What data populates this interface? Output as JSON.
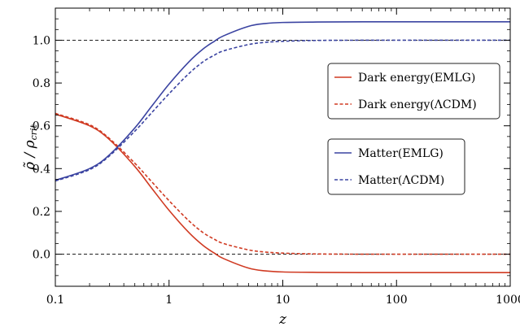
{
  "chart_data": {
    "type": "line",
    "title": "",
    "xlabel": "z",
    "ylabel_main": "ρ̃ / ρ",
    "ylabel_sub": "crit",
    "x_scale": "log",
    "xlim": [
      0.1,
      1000
    ],
    "ylim": [
      -0.15,
      1.15
    ],
    "x_ticks": [
      {
        "value": 0.1,
        "label": "0.1"
      },
      {
        "value": 1,
        "label": "1"
      },
      {
        "value": 10,
        "label": "10"
      },
      {
        "value": 100,
        "label": "100"
      },
      {
        "value": 1000,
        "label": "1000"
      }
    ],
    "y_ticks": [
      {
        "value": 0.0,
        "label": "0.0"
      },
      {
        "value": 0.2,
        "label": "0.2"
      },
      {
        "value": 0.4,
        "label": "0.4"
      },
      {
        "value": 0.6,
        "label": "0.6"
      },
      {
        "value": 0.8,
        "label": "0.8"
      },
      {
        "value": 1.0,
        "label": "1.0"
      }
    ],
    "reference_lines": [
      0.0,
      1.0
    ],
    "x": [
      0.1,
      0.2,
      0.3,
      0.5,
      0.7,
      1,
      1.5,
      2,
      2.5,
      3,
      5,
      7,
      10,
      20,
      50,
      100,
      1000
    ],
    "series": [
      {
        "name": "Dark energy(EMLG)",
        "color": "#d03a22",
        "dash": "solid",
        "legend_group": 0,
        "values": [
          0.655,
          0.6,
          0.535,
          0.41,
          0.31,
          0.205,
          0.1,
          0.04,
          0.005,
          -0.02,
          -0.065,
          -0.078,
          -0.083,
          -0.085,
          -0.086,
          -0.086,
          -0.086
        ]
      },
      {
        "name": "Dark energy(ΛCDM)",
        "color": "#d03a22",
        "dash": "dashed",
        "legend_group": 0,
        "values": [
          0.658,
          0.605,
          0.54,
          0.425,
          0.34,
          0.25,
          0.155,
          0.1,
          0.07,
          0.05,
          0.02,
          0.01,
          0.005,
          0.001,
          0.0,
          0.0,
          0.0
        ]
      },
      {
        "name": "Matter(EMLG)",
        "color": "#3a43a1",
        "dash": "solid",
        "legend_group": 1,
        "values": [
          0.345,
          0.4,
          0.465,
          0.59,
          0.69,
          0.795,
          0.9,
          0.96,
          0.995,
          1.02,
          1.065,
          1.078,
          1.083,
          1.085,
          1.086,
          1.086,
          1.086
        ]
      },
      {
        "name": "Matter(ΛCDM)",
        "color": "#3a43a1",
        "dash": "dashed",
        "legend_group": 1,
        "values": [
          0.342,
          0.395,
          0.46,
          0.575,
          0.66,
          0.75,
          0.845,
          0.9,
          0.93,
          0.95,
          0.98,
          0.99,
          0.995,
          0.999,
          1.0,
          1.0,
          1.0
        ]
      }
    ],
    "legend_placement": "right",
    "grid": false
  }
}
